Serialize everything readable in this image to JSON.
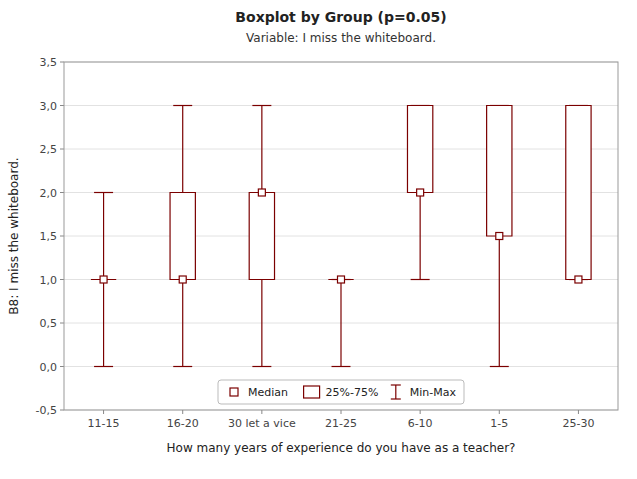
{
  "chart_data": {
    "type": "box",
    "title": "Boxplot by Group (p=0.05)",
    "subtitle": "Variable: I miss the whiteboard.",
    "x_label": "How many years of experience do you have as a teacher?",
    "y_label": "B8: I miss the whiteboard.",
    "categories": [
      "11-15",
      "16-20",
      "30 let a vice",
      "21-25",
      "6-10",
      "1-5",
      "25-30"
    ],
    "boxes": [
      {
        "min": 0,
        "q1": 1,
        "median": 1,
        "q3": 1,
        "max": 2
      },
      {
        "min": 0,
        "q1": 1,
        "median": 1,
        "q3": 2,
        "max": 3
      },
      {
        "min": 0,
        "q1": 1,
        "median": 2,
        "q3": 2,
        "max": 3
      },
      {
        "min": 0,
        "q1": 1,
        "median": 1,
        "q3": 1,
        "max": 1
      },
      {
        "min": 1,
        "q1": 2,
        "median": 2,
        "q3": 3,
        "max": 3
      },
      {
        "min": 0,
        "q1": 1.5,
        "median": 1.5,
        "q3": 3,
        "max": 3
      },
      {
        "min": 1,
        "q1": 1,
        "median": 1,
        "q3": 3,
        "max": 3
      }
    ],
    "color": "#7B0000",
    "ylim": [
      -0.5,
      3.5
    ],
    "yticks": [
      {
        "value": -0.5,
        "label": "-0,5"
      },
      {
        "value": 0.0,
        "label": "0,0"
      },
      {
        "value": 0.5,
        "label": "0,5"
      },
      {
        "value": 1.0,
        "label": "1,0"
      },
      {
        "value": 1.5,
        "label": "1,5"
      },
      {
        "value": 2.0,
        "label": "2,0"
      },
      {
        "value": 2.5,
        "label": "2,5"
      },
      {
        "value": 3.0,
        "label": "3,0"
      },
      {
        "value": 3.5,
        "label": "3,5"
      }
    ],
    "grid": true,
    "legend": "lower center",
    "legend_entries": [
      "Median",
      "25%-75%",
      "Min-Max"
    ]
  }
}
